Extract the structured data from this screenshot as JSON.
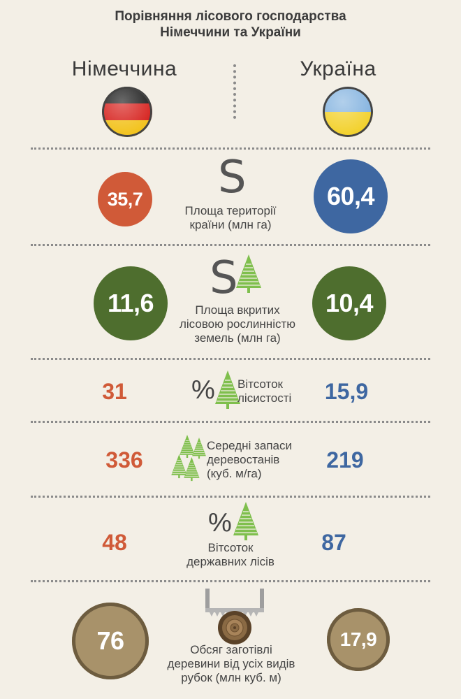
{
  "title": {
    "line1": "Порівняння лісового господарства",
    "line2": "Німеччини та України"
  },
  "countries": {
    "left": "Німеччина",
    "right": "Україна"
  },
  "rows": [
    {
      "left_value": "35,7",
      "right_value": "60,4",
      "label": [
        "Площа території",
        "країни (млн га)"
      ],
      "symbol": "S"
    },
    {
      "left_value": "11,6",
      "right_value": "10,4",
      "label": [
        "Площа вкритих",
        "лісовою рослинністю",
        "земель (млн га)"
      ],
      "symbol": "S"
    },
    {
      "left_value": "31",
      "right_value": "15,9",
      "label": [
        "Вітсоток",
        "лісистості"
      ],
      "symbol": "%"
    },
    {
      "left_value": "336",
      "right_value": "219",
      "label": [
        "Середні запаси",
        "деревостанів",
        "(куб. м/га)"
      ]
    },
    {
      "left_value": "48",
      "right_value": "87",
      "label": [
        "Вітсоток",
        "державних лісів"
      ],
      "symbol": "%"
    },
    {
      "left_value": "76",
      "right_value": "17,9",
      "label": [
        "Обсяг заготівлі",
        "деревини від усіх видів",
        "рубок (млн куб. м)"
      ]
    }
  ],
  "colors": {
    "background": "#f3efe6",
    "germany_red": "#d05a38",
    "ukraine_blue": "#3e67a1",
    "forest_green": "#4e6e2e",
    "timber_tan": "#a8926a",
    "tree_green": "#7fbf4d"
  },
  "icons": {
    "germany_flag": "germany-flag-icon",
    "ukraine_flag": "ukraine-flag-icon",
    "tree": "tree-icon",
    "saw": "saw-icon",
    "log": "log-icon"
  }
}
